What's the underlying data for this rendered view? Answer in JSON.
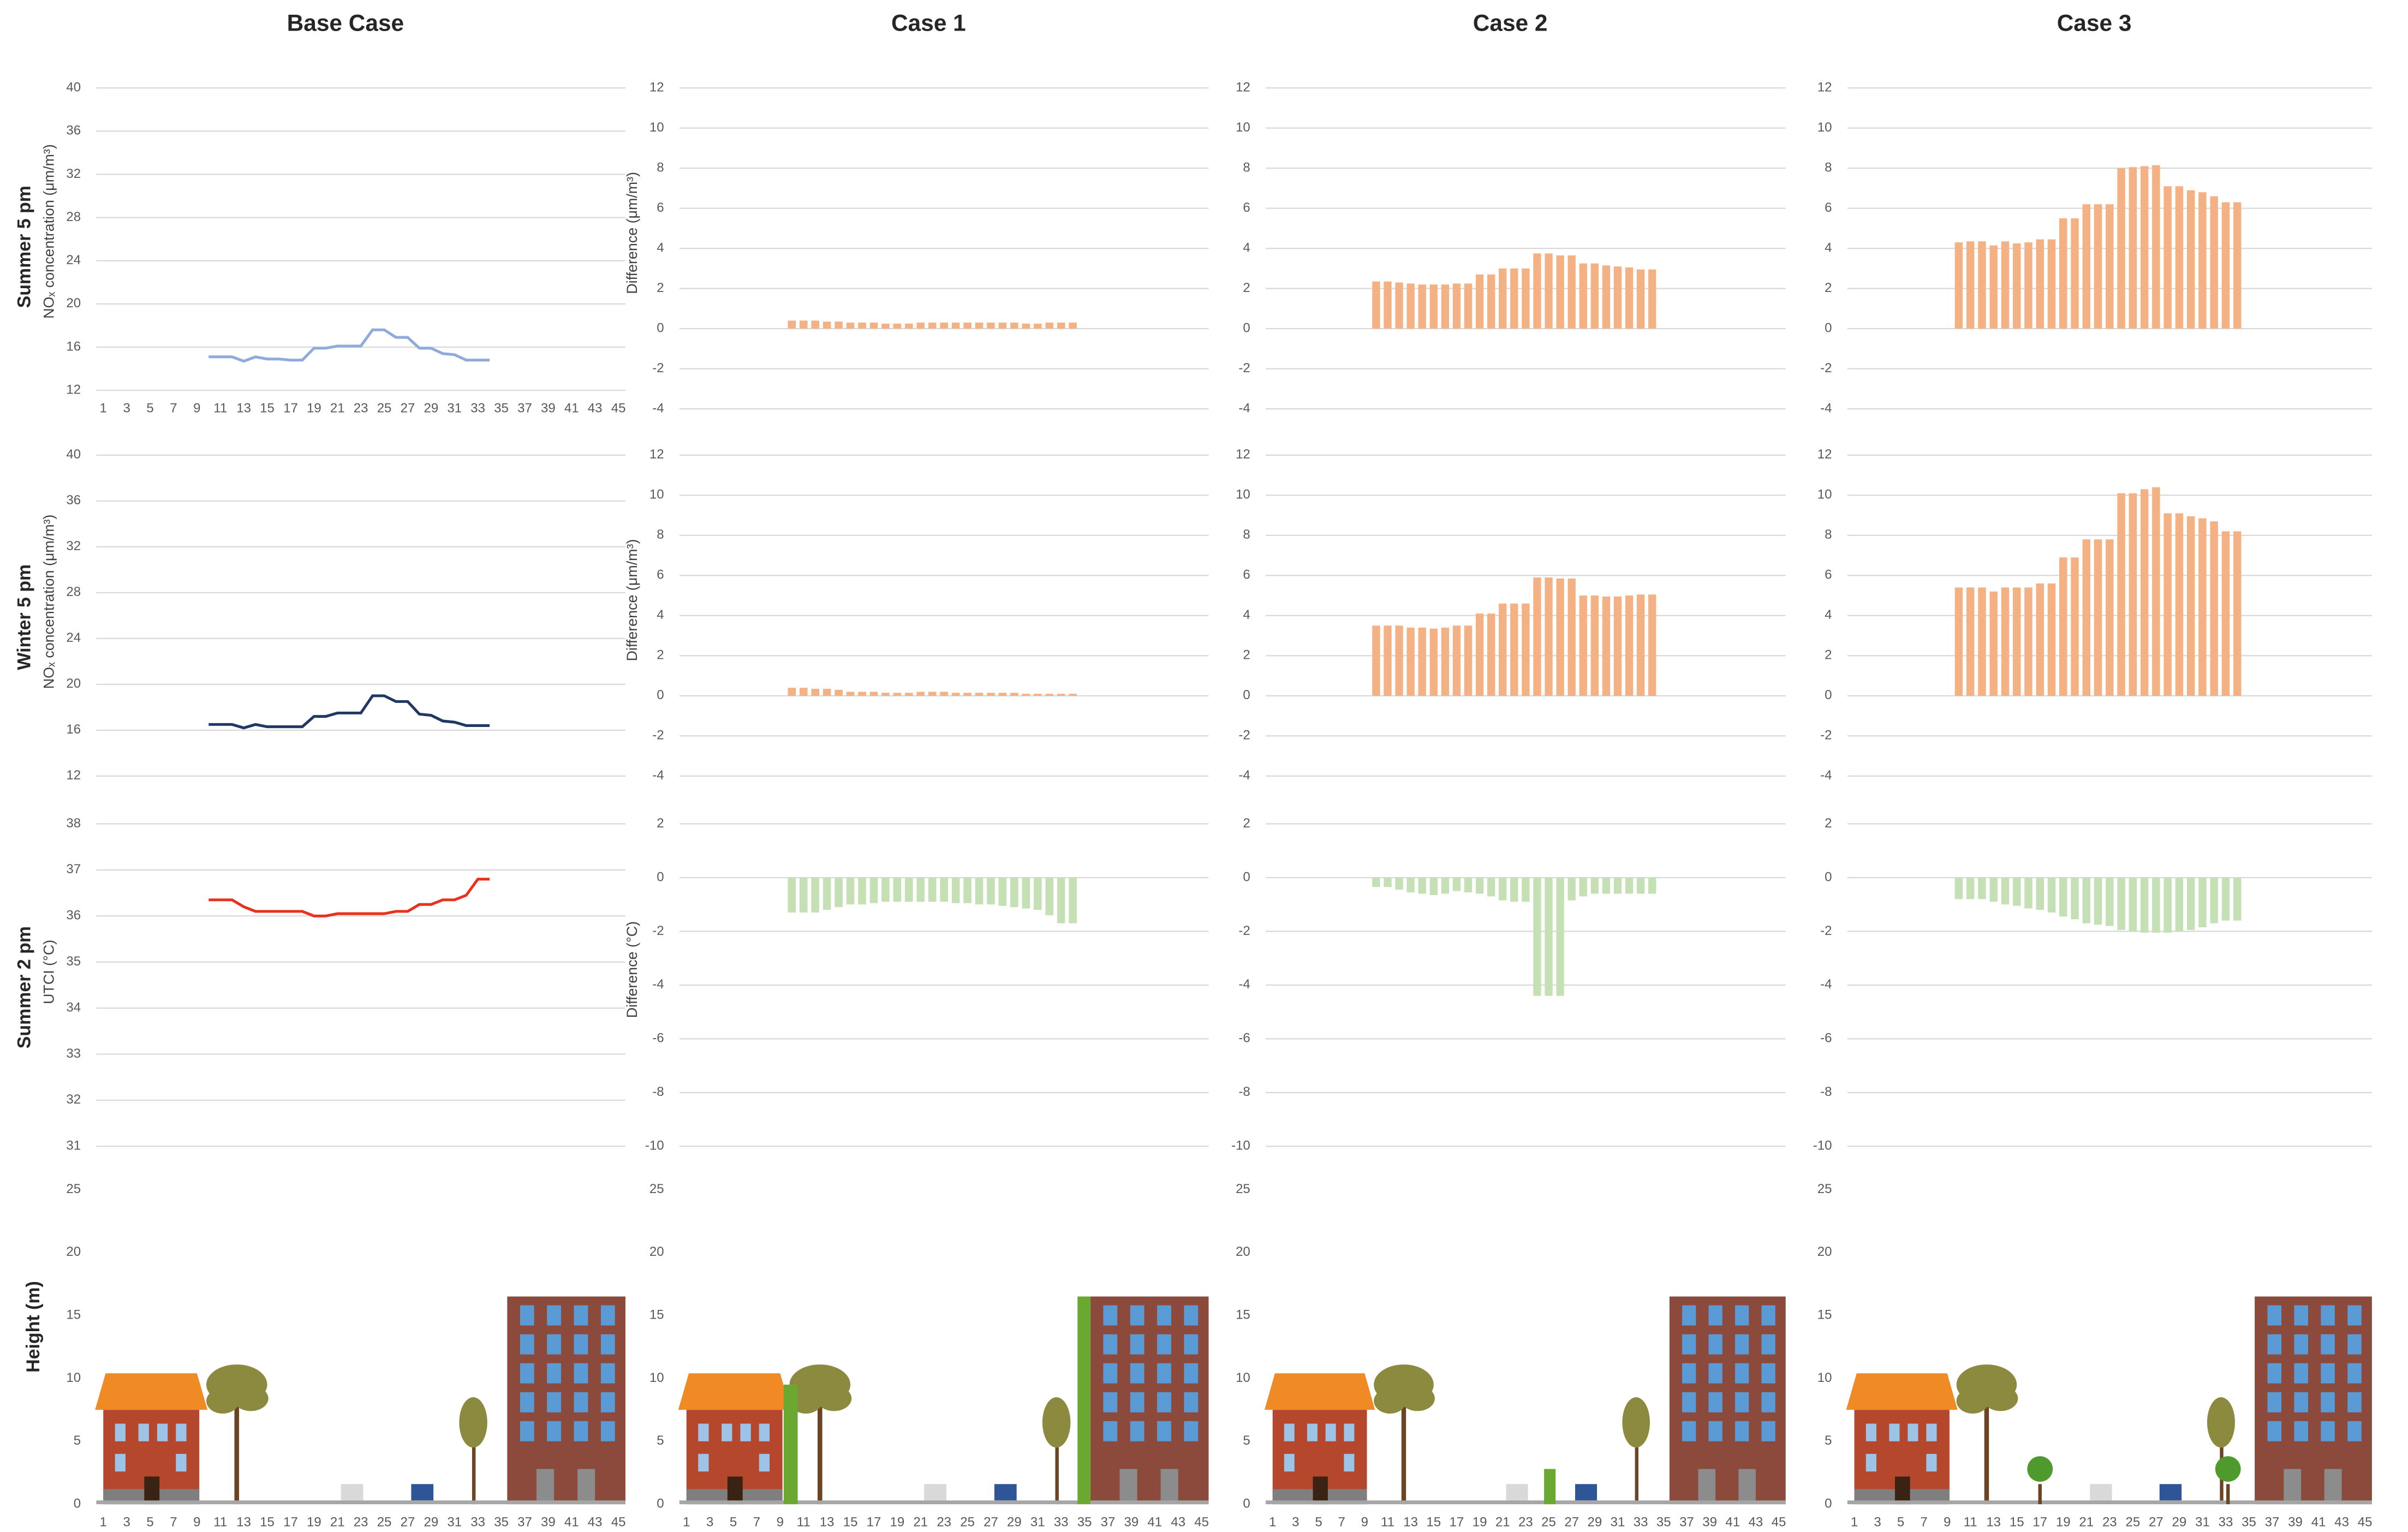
{
  "column_titles": [
    "Base Case",
    "Case 1",
    "Case 2",
    "Case 3"
  ],
  "row_labels": [
    "Summer 5 pm",
    "Winter 5 pm",
    "Summer 2 pm"
  ],
  "chart_data": [
    {
      "type": "line",
      "ylabel": "NOₓ concentration (μm/m³)",
      "x": [
        10,
        11,
        12,
        13,
        14,
        15,
        16,
        17,
        18,
        19,
        20,
        21,
        22,
        23,
        24,
        25,
        26,
        27,
        28,
        29,
        30,
        31,
        32,
        33,
        34
      ],
      "values": [
        15.1,
        15.1,
        15.1,
        14.7,
        15.1,
        14.9,
        14.9,
        14.8,
        14.8,
        15.9,
        15.9,
        16.1,
        16.1,
        16.1,
        17.6,
        17.6,
        16.9,
        16.9,
        15.9,
        15.9,
        15.4,
        15.3,
        14.8,
        14.8,
        14.8
      ],
      "color": "#8faadc",
      "xlim": [
        0.4,
        45.6
      ],
      "ylim": [
        12,
        40
      ],
      "yticks": [
        12,
        16,
        20,
        24,
        28,
        32,
        36,
        40
      ],
      "xticks": [
        1,
        3,
        5,
        7,
        9,
        11,
        13,
        15,
        17,
        19,
        21,
        23,
        25,
        27,
        29,
        31,
        33,
        35,
        37,
        39,
        41,
        43,
        45
      ],
      "grid": true
    },
    {
      "type": "bar",
      "ylabel": "Difference (μm/m³)",
      "x": [
        10,
        11,
        12,
        13,
        14,
        15,
        16,
        17,
        18,
        19,
        20,
        21,
        22,
        23,
        24,
        25,
        26,
        27,
        28,
        29,
        30,
        31,
        32,
        33,
        34
      ],
      "values": [
        0.4,
        0.4,
        0.4,
        0.35,
        0.35,
        0.3,
        0.3,
        0.3,
        0.25,
        0.25,
        0.25,
        0.3,
        0.3,
        0.3,
        0.3,
        0.3,
        0.3,
        0.3,
        0.3,
        0.3,
        0.25,
        0.25,
        0.3,
        0.3,
        0.3
      ],
      "color": "#f4b183",
      "xlim": [
        0.4,
        45.6
      ],
      "ylim": [
        -4,
        12
      ],
      "yticks": [
        -4,
        -2,
        0,
        2,
        4,
        6,
        8,
        10,
        12
      ],
      "grid": true
    },
    {
      "type": "bar",
      "x": [
        10,
        11,
        12,
        13,
        14,
        15,
        16,
        17,
        18,
        19,
        20,
        21,
        22,
        23,
        24,
        25,
        26,
        27,
        28,
        29,
        30,
        31,
        32,
        33,
        34
      ],
      "values": [
        2.35,
        2.35,
        2.3,
        2.25,
        2.2,
        2.2,
        2.2,
        2.25,
        2.25,
        2.7,
        2.7,
        3.0,
        3.0,
        3.0,
        3.75,
        3.75,
        3.65,
        3.65,
        3.25,
        3.25,
        3.15,
        3.1,
        3.05,
        2.95,
        2.95
      ],
      "color": "#f4b183",
      "xlim": [
        0.4,
        45.6
      ],
      "ylim": [
        -4,
        12
      ],
      "yticks": [
        -4,
        -2,
        0,
        2,
        4,
        6,
        8,
        10,
        12
      ],
      "grid": true
    },
    {
      "type": "bar",
      "x": [
        10,
        11,
        12,
        13,
        14,
        15,
        16,
        17,
        18,
        19,
        20,
        21,
        22,
        23,
        24,
        25,
        26,
        27,
        28,
        29,
        30,
        31,
        32,
        33,
        34
      ],
      "values": [
        4.3,
        4.35,
        4.35,
        4.15,
        4.35,
        4.25,
        4.3,
        4.45,
        4.45,
        5.5,
        5.5,
        6.2,
        6.2,
        6.2,
        8.0,
        8.05,
        8.1,
        8.15,
        7.1,
        7.1,
        6.9,
        6.8,
        6.6,
        6.3,
        6.3
      ],
      "color": "#f4b183",
      "xlim": [
        0.4,
        45.6
      ],
      "ylim": [
        -4,
        12
      ],
      "yticks": [
        -4,
        -2,
        0,
        2,
        4,
        6,
        8,
        10,
        12
      ],
      "grid": true
    },
    {
      "type": "line",
      "ylabel": "NOₓ concentration (μm/m³)",
      "x": [
        10,
        11,
        12,
        13,
        14,
        15,
        16,
        17,
        18,
        19,
        20,
        21,
        22,
        23,
        24,
        25,
        26,
        27,
        28,
        29,
        30,
        31,
        32,
        33,
        34
      ],
      "values": [
        16.5,
        16.5,
        16.5,
        16.2,
        16.5,
        16.3,
        16.3,
        16.3,
        16.3,
        17.2,
        17.2,
        17.5,
        17.5,
        17.5,
        19.0,
        19.0,
        18.5,
        18.5,
        17.4,
        17.3,
        16.8,
        16.7,
        16.4,
        16.4,
        16.4
      ],
      "color": "#1f3864",
      "xlim": [
        0.4,
        45.6
      ],
      "ylim": [
        12,
        40
      ],
      "yticks": [
        12,
        16,
        20,
        24,
        28,
        32,
        36,
        40
      ],
      "grid": true
    },
    {
      "type": "bar",
      "ylabel": "Difference (μm/m³)",
      "x": [
        10,
        11,
        12,
        13,
        14,
        15,
        16,
        17,
        18,
        19,
        20,
        21,
        22,
        23,
        24,
        25,
        26,
        27,
        28,
        29,
        30,
        31,
        32,
        33,
        34
      ],
      "values": [
        0.4,
        0.4,
        0.35,
        0.35,
        0.3,
        0.2,
        0.2,
        0.2,
        0.15,
        0.15,
        0.15,
        0.2,
        0.2,
        0.2,
        0.15,
        0.15,
        0.15,
        0.15,
        0.15,
        0.15,
        0.1,
        0.1,
        0.1,
        0.1,
        0.1
      ],
      "color": "#f4b183",
      "xlim": [
        0.4,
        45.6
      ],
      "ylim": [
        -4,
        12
      ],
      "yticks": [
        -4,
        -2,
        0,
        2,
        4,
        6,
        8,
        10,
        12
      ],
      "grid": true
    },
    {
      "type": "bar",
      "x": [
        10,
        11,
        12,
        13,
        14,
        15,
        16,
        17,
        18,
        19,
        20,
        21,
        22,
        23,
        24,
        25,
        26,
        27,
        28,
        29,
        30,
        31,
        32,
        33,
        34
      ],
      "values": [
        3.5,
        3.5,
        3.5,
        3.4,
        3.4,
        3.35,
        3.4,
        3.5,
        3.5,
        4.1,
        4.1,
        4.6,
        4.6,
        4.6,
        5.9,
        5.9,
        5.85,
        5.85,
        5.0,
        5.0,
        4.95,
        4.95,
        5.0,
        5.05,
        5.05
      ],
      "color": "#f4b183",
      "xlim": [
        0.4,
        45.6
      ],
      "ylim": [
        -4,
        12
      ],
      "yticks": [
        -4,
        -2,
        0,
        2,
        4,
        6,
        8,
        10,
        12
      ],
      "grid": true
    },
    {
      "type": "bar",
      "x": [
        10,
        11,
        12,
        13,
        14,
        15,
        16,
        17,
        18,
        19,
        20,
        21,
        22,
        23,
        24,
        25,
        26,
        27,
        28,
        29,
        30,
        31,
        32,
        33,
        34
      ],
      "values": [
        5.4,
        5.4,
        5.4,
        5.2,
        5.4,
        5.4,
        5.4,
        5.6,
        5.6,
        6.9,
        6.9,
        7.8,
        7.8,
        7.8,
        10.1,
        10.1,
        10.3,
        10.4,
        9.1,
        9.1,
        8.95,
        8.85,
        8.7,
        8.2,
        8.2
      ],
      "color": "#f4b183",
      "xlim": [
        0.4,
        45.6
      ],
      "ylim": [
        -4,
        12
      ],
      "yticks": [
        -4,
        -2,
        0,
        2,
        4,
        6,
        8,
        10,
        12
      ],
      "grid": true
    },
    {
      "type": "line",
      "ylabel": "UTCI (°C)",
      "x": [
        10,
        11,
        12,
        13,
        14,
        15,
        16,
        17,
        18,
        19,
        20,
        21,
        22,
        23,
        24,
        25,
        26,
        27,
        28,
        29,
        30,
        31,
        32,
        33,
        34
      ],
      "values": [
        36.35,
        36.35,
        36.35,
        36.2,
        36.1,
        36.1,
        36.1,
        36.1,
        36.1,
        36.0,
        36.0,
        36.05,
        36.05,
        36.05,
        36.05,
        36.05,
        36.1,
        36.1,
        36.25,
        36.25,
        36.35,
        36.35,
        36.45,
        36.8,
        36.8
      ],
      "color": "#e8321e",
      "xlim": [
        0.4,
        45.6
      ],
      "ylim": [
        31,
        38
      ],
      "yticks": [
        31,
        32,
        33,
        34,
        35,
        36,
        37,
        38
      ],
      "grid": true
    },
    {
      "type": "bar",
      "ylabel": "Difference (°C)",
      "x": [
        10,
        11,
        12,
        13,
        14,
        15,
        16,
        17,
        18,
        19,
        20,
        21,
        22,
        23,
        24,
        25,
        26,
        27,
        28,
        29,
        30,
        31,
        32,
        33,
        34
      ],
      "values": [
        -1.3,
        -1.3,
        -1.3,
        -1.2,
        -1.1,
        -1.0,
        -1.0,
        -0.95,
        -0.9,
        -0.9,
        -0.9,
        -0.9,
        -0.9,
        -0.9,
        -0.95,
        -0.95,
        -1.0,
        -1.0,
        -1.05,
        -1.1,
        -1.15,
        -1.2,
        -1.4,
        -1.7,
        -1.7
      ],
      "color": "#c5e0b4",
      "xlim": [
        0.4,
        45.6
      ],
      "ylim": [
        -10,
        2
      ],
      "yticks": [
        -10,
        -8,
        -6,
        -4,
        -2,
        0,
        2
      ],
      "grid": true
    },
    {
      "type": "bar",
      "x": [
        10,
        11,
        12,
        13,
        14,
        15,
        16,
        17,
        18,
        19,
        20,
        21,
        22,
        23,
        24,
        25,
        26,
        27,
        28,
        29,
        30,
        31,
        32,
        33,
        34
      ],
      "values": [
        -0.35,
        -0.35,
        -0.45,
        -0.55,
        -0.6,
        -0.65,
        -0.6,
        -0.5,
        -0.55,
        -0.6,
        -0.7,
        -0.85,
        -0.9,
        -0.9,
        -4.4,
        -4.4,
        -4.4,
        -0.85,
        -0.7,
        -0.6,
        -0.6,
        -0.6,
        -0.6,
        -0.6,
        -0.6
      ],
      "color": "#c5e0b4",
      "xlim": [
        0.4,
        45.6
      ],
      "ylim": [
        -10,
        2
      ],
      "yticks": [
        -10,
        -8,
        -6,
        -4,
        -2,
        0,
        2
      ],
      "grid": true
    },
    {
      "type": "bar",
      "x": [
        10,
        11,
        12,
        13,
        14,
        15,
        16,
        17,
        18,
        19,
        20,
        21,
        22,
        23,
        24,
        25,
        26,
        27,
        28,
        29,
        30,
        31,
        32,
        33,
        34
      ],
      "values": [
        -0.8,
        -0.8,
        -0.8,
        -0.9,
        -1.0,
        -1.05,
        -1.15,
        -1.2,
        -1.3,
        -1.45,
        -1.55,
        -1.7,
        -1.75,
        -1.8,
        -1.95,
        -2.0,
        -2.05,
        -2.05,
        -2.05,
        -2.0,
        -1.95,
        -1.85,
        -1.7,
        -1.6,
        -1.6
      ],
      "color": "#c5e0b4",
      "xlim": [
        0.4,
        45.6
      ],
      "ylim": [
        -10,
        2
      ],
      "yticks": [
        -10,
        -8,
        -6,
        -4,
        -2,
        0,
        2
      ],
      "grid": true
    },
    {
      "type": "scene",
      "ylabel": "Height (m)",
      "xlim": [
        0.4,
        45.6
      ],
      "ylim": [
        0,
        25
      ],
      "yticks": [
        0,
        5,
        10,
        15,
        20,
        25
      ],
      "xticks": [
        1,
        3,
        5,
        7,
        9,
        11,
        13,
        15,
        17,
        19,
        21,
        23,
        25,
        27,
        29,
        31,
        33,
        35,
        37,
        39,
        41,
        43,
        45
      ],
      "grid": false
    },
    {
      "type": "scene",
      "xlim": [
        0.4,
        45.6
      ],
      "ylim": [
        0,
        25
      ],
      "yticks": [
        0,
        5,
        10,
        15,
        20,
        25
      ],
      "xticks": [
        1,
        3,
        5,
        7,
        9,
        11,
        13,
        15,
        17,
        19,
        21,
        23,
        25,
        27,
        29,
        31,
        33,
        35,
        37,
        39,
        41,
        43,
        45
      ],
      "grid": false
    },
    {
      "type": "scene",
      "xlim": [
        0.4,
        45.6
      ],
      "ylim": [
        0,
        25
      ],
      "yticks": [
        0,
        5,
        10,
        15,
        20,
        25
      ],
      "xticks": [
        1,
        3,
        5,
        7,
        9,
        11,
        13,
        15,
        17,
        19,
        21,
        23,
        25,
        27,
        29,
        31,
        33,
        35,
        37,
        39,
        41,
        43,
        45
      ],
      "grid": false
    },
    {
      "type": "scene",
      "xlim": [
        0.4,
        45.6
      ],
      "ylim": [
        0,
        25
      ],
      "yticks": [
        0,
        5,
        10,
        15,
        20,
        25
      ],
      "xticks": [
        1,
        3,
        5,
        7,
        9,
        11,
        13,
        15,
        17,
        19,
        21,
        23,
        25,
        27,
        29,
        31,
        33,
        35,
        37,
        39,
        41,
        43,
        45
      ],
      "grid": false
    }
  ]
}
